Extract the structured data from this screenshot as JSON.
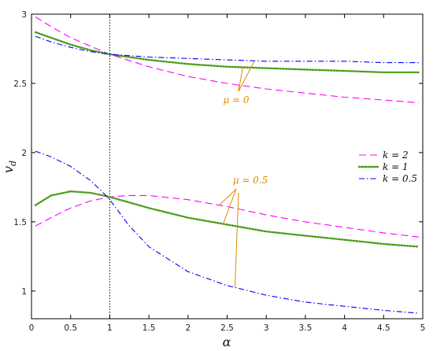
{
  "chart_data": {
    "type": "line",
    "xlabel": "α",
    "ylabel": "v",
    "ylabel_sub": "d",
    "xlim": [
      0,
      5
    ],
    "ylim": [
      0.8,
      3
    ],
    "x_ticks": [
      0,
      0.5,
      1,
      1.5,
      2,
      2.5,
      3,
      3.5,
      4,
      4.5,
      5
    ],
    "x_tick_labels": [
      "0",
      "0.5",
      "1",
      "1.5",
      "2",
      "2.5",
      "3",
      "3.5",
      "4",
      "4.5",
      "5"
    ],
    "y_ticks": [
      1,
      1.5,
      2,
      2.5,
      3
    ],
    "y_tick_labels": [
      "1",
      "1.5",
      "2",
      "2.5",
      "3"
    ],
    "grid": false,
    "vertical_reference_line": {
      "x": 1,
      "style": "dotted",
      "color": "#000000"
    },
    "legend": {
      "placement": "right",
      "entries": [
        {
          "label": "k = 2",
          "series_group": "k2"
        },
        {
          "label": "k = 1",
          "series_group": "k1"
        },
        {
          "label": "k = 0.5",
          "series_group": "k05"
        }
      ]
    },
    "annotations": [
      {
        "text": "μ = 0",
        "color": "#e08a00",
        "points_to": [
          "k2_mu0",
          "k1_mu0",
          "k05_mu0"
        ]
      },
      {
        "text": "μ = 0.5",
        "color": "#e08a00",
        "points_to": [
          "k2_mu05",
          "k1_mu05",
          "k05_mu05"
        ]
      }
    ],
    "series": [
      {
        "id": "k2_mu0",
        "group": "k2",
        "mu": 0,
        "color": "#ff00ff",
        "style": "dashed",
        "x": [
          0.05,
          0.25,
          0.5,
          0.75,
          1,
          1.5,
          2,
          2.5,
          3,
          3.5,
          4,
          4.5,
          4.95
        ],
        "values": [
          2.98,
          2.91,
          2.83,
          2.77,
          2.71,
          2.62,
          2.55,
          2.5,
          2.46,
          2.43,
          2.4,
          2.38,
          2.36
        ]
      },
      {
        "id": "k1_mu0",
        "group": "k1",
        "mu": 0,
        "color": "#4a9b1a",
        "style": "dotted",
        "x": [
          0.05,
          0.25,
          0.5,
          0.75,
          1,
          1.5,
          2,
          2.5,
          3,
          3.5,
          4,
          4.5,
          4.95
        ],
        "values": [
          2.87,
          2.83,
          2.78,
          2.74,
          2.71,
          2.67,
          2.64,
          2.62,
          2.61,
          2.6,
          2.59,
          2.58,
          2.58
        ]
      },
      {
        "id": "k05_mu0",
        "group": "k05",
        "mu": 0,
        "color": "#0000ff",
        "style": "dashdot",
        "x": [
          0.05,
          0.25,
          0.5,
          0.75,
          1,
          1.5,
          2,
          2.5,
          3,
          3.5,
          4,
          4.5,
          4.95
        ],
        "values": [
          2.84,
          2.8,
          2.76,
          2.73,
          2.71,
          2.69,
          2.68,
          2.67,
          2.66,
          2.66,
          2.66,
          2.65,
          2.65
        ]
      },
      {
        "id": "k2_mu05",
        "group": "k2",
        "mu": 0.5,
        "color": "#ff00ff",
        "style": "dashed",
        "x": [
          0.05,
          0.25,
          0.5,
          0.75,
          1,
          1.25,
          1.5,
          2,
          2.5,
          3,
          3.5,
          4,
          4.5,
          4.95
        ],
        "values": [
          1.47,
          1.53,
          1.6,
          1.65,
          1.68,
          1.69,
          1.69,
          1.66,
          1.61,
          1.55,
          1.5,
          1.46,
          1.42,
          1.39
        ]
      },
      {
        "id": "k1_mu05",
        "group": "k1",
        "mu": 0.5,
        "color": "#4a9b1a",
        "style": "dotted",
        "x": [
          0.05,
          0.25,
          0.5,
          0.75,
          1,
          1.5,
          2,
          2.5,
          3,
          3.5,
          4,
          4.5,
          4.95
        ],
        "values": [
          1.62,
          1.69,
          1.72,
          1.71,
          1.68,
          1.6,
          1.53,
          1.48,
          1.43,
          1.4,
          1.37,
          1.34,
          1.32
        ]
      },
      {
        "id": "k05_mu05",
        "group": "k05",
        "mu": 0.5,
        "color": "#0000ff",
        "style": "dashdot",
        "x": [
          0.05,
          0.25,
          0.5,
          0.75,
          0.9,
          1,
          1.25,
          1.5,
          2,
          2.5,
          3,
          3.5,
          4,
          4.5,
          4.95
        ],
        "values": [
          2.01,
          1.97,
          1.9,
          1.8,
          1.72,
          1.66,
          1.47,
          1.32,
          1.14,
          1.04,
          0.97,
          0.92,
          0.89,
          0.86,
          0.84
        ]
      }
    ]
  }
}
